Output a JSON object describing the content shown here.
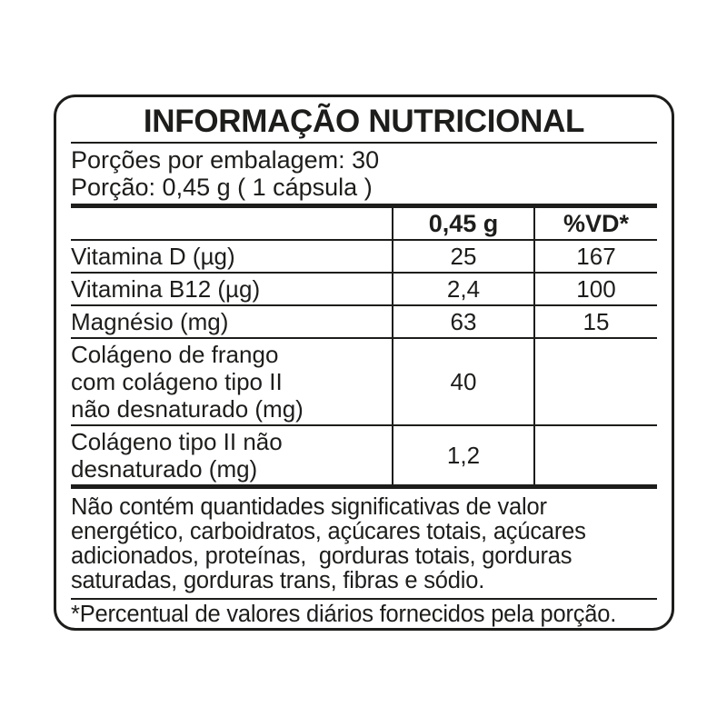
{
  "label": {
    "title": "INFORMAÇÃO NUTRICIONAL",
    "serving_info": {
      "servings_per_package": "Porções por embalagem: 30",
      "serving_size": "Porção: 0,45 g ( 1 cápsula )"
    },
    "table": {
      "columns": [
        "",
        "0,45 g",
        "%VD*"
      ],
      "rows": [
        {
          "name": "Vitamina D (µg)",
          "amount": "25",
          "vd": "167"
        },
        {
          "name": "Vitamina B12 (µg)",
          "amount": "2,4",
          "vd": "100"
        },
        {
          "name": "Magnésio (mg)",
          "amount": "63",
          "vd": "15"
        },
        {
          "name": "Colágeno de frango\ncom colágeno tipo II\nnão desnaturado (mg)",
          "amount": "40",
          "vd": ""
        },
        {
          "name": "Colágeno tipo II não\ndesnaturado (mg)",
          "amount": "1,2",
          "vd": ""
        }
      ]
    },
    "no_significant_note": "Não contém quantidades significativas de valor\nenergético, carboidratos, açúcares totais, açúcares\nadicionados, proteínas,  gorduras totais, gorduras\nsaturadas, gorduras trans, fibras e sódio.",
    "footnote": "*Percentual de valores diários fornecidos pela porção.",
    "colors": {
      "text": "#1d1d1b",
      "background": "#ffffff"
    }
  }
}
